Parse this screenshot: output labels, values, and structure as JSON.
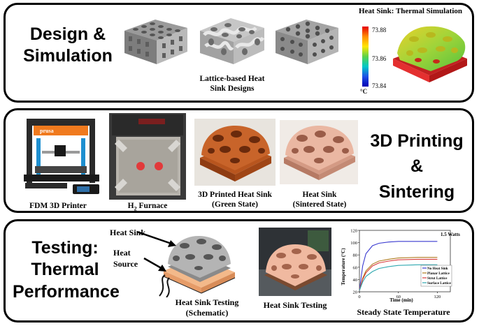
{
  "panels": {
    "design": {
      "title_line1": "Design &",
      "title_line2": "Simulation",
      "lattice_caption_line1": "Lattice-based Heat",
      "lattice_caption_line2": "Sink Designs",
      "sim_title": "Heat Sink: Thermal Simulation",
      "colorbar_ticks": [
        "73.88",
        "73.86",
        "73.84"
      ],
      "colorbar_unit": "°C"
    },
    "printing": {
      "title_line1": "3D Printing",
      "title_line2": "&",
      "title_line3": "Sintering",
      "printer_caption": "FDM 3D Printer",
      "printer_brand": "prusa",
      "furnace_caption_prefix": "H",
      "furnace_caption_sub": "2",
      "furnace_caption_suffix": " Furnace",
      "green_caption_line1": "3D Printed Heat Sink",
      "green_caption_line2": "(Green State)",
      "sintered_caption_line1": "Heat Sink",
      "sintered_caption_line2": "(Sintered State)"
    },
    "testing": {
      "title_line1": "Testing:",
      "title_line2": "Thermal",
      "title_line3": "Performance",
      "label_heat_sink": "Heat Sink",
      "label_heat_line1": "Heat",
      "label_heat_line2": "Source",
      "schematic_caption_line1": "Heat Sink Testing",
      "schematic_caption_line2": "(Schematic)",
      "photo_caption": "Heat Sink Testing",
      "chart_caption": "Steady State Temperature"
    }
  },
  "chart_data": {
    "type": "line",
    "title": "",
    "annotation": "1.5 Watts",
    "xlabel": "Time (min)",
    "ylabel": "Temperature (°C)",
    "xlim": [
      0,
      140
    ],
    "ylim": [
      20,
      120
    ],
    "x_ticks": [
      0,
      60,
      120
    ],
    "y_ticks": [
      20,
      40,
      60,
      80,
      100,
      120
    ],
    "x": [
      0,
      5,
      10,
      20,
      30,
      45,
      60,
      90,
      120
    ],
    "series": [
      {
        "name": "No Heat Sink",
        "color": "#3a3ad0",
        "values": [
          22,
          62,
          82,
          95,
          99,
          101,
          102,
          102,
          102
        ]
      },
      {
        "name": "Planar Lattice",
        "color": "#b07a1e",
        "values": [
          22,
          42,
          54,
          65,
          70,
          73,
          75,
          76,
          76
        ]
      },
      {
        "name": "Strut Lattice",
        "color": "#d83a3a",
        "values": [
          22,
          40,
          51,
          62,
          67,
          70,
          72,
          73,
          73
        ]
      },
      {
        "name": "Surface Lattice",
        "color": "#2fa8b0",
        "values": [
          22,
          36,
          45,
          53,
          58,
          61,
          63,
          64,
          64
        ]
      }
    ]
  }
}
